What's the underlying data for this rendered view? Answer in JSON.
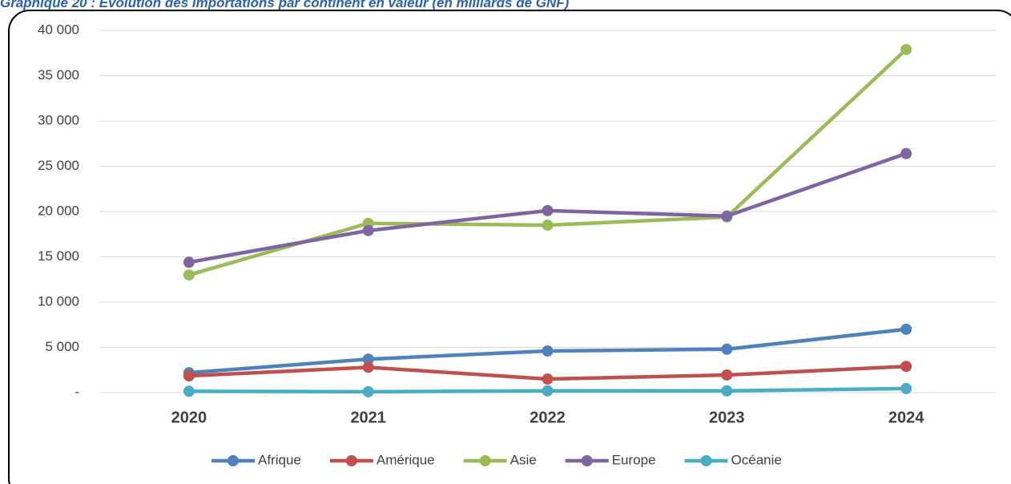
{
  "chart_data": {
    "type": "line",
    "title": "Graphique 20 : Evolution des importations par continent en valeur (en milliards de GNF)",
    "categories": [
      "2020",
      "2021",
      "2022",
      "2023",
      "2024"
    ],
    "series": [
      {
        "name": "Afrique",
        "color": "#4f81bd",
        "values": [
          2200,
          3700,
          4600,
          4800,
          7000
        ]
      },
      {
        "name": "Amérique",
        "color": "#c0504d",
        "values": [
          1850,
          2800,
          1500,
          1950,
          2900
        ]
      },
      {
        "name": "Asie",
        "color": "#9bbb59",
        "values": [
          13000,
          18700,
          18500,
          19400,
          37900
        ]
      },
      {
        "name": "Europe",
        "color": "#8064a2",
        "values": [
          14400,
          17900,
          20100,
          19500,
          26400
        ]
      },
      {
        "name": "Océanie",
        "color": "#4bacc6",
        "values": [
          150,
          100,
          200,
          200,
          450
        ]
      }
    ],
    "ylim": [
      0,
      40000
    ],
    "yticks": [
      {
        "value": 0,
        "label": "-"
      },
      {
        "value": 5000,
        "label": "5 000"
      },
      {
        "value": 10000,
        "label": "10 000"
      },
      {
        "value": 15000,
        "label": "15 000"
      },
      {
        "value": 20000,
        "label": "20 000"
      },
      {
        "value": 25000,
        "label": "25 000"
      },
      {
        "value": 30000,
        "label": "30 000"
      },
      {
        "value": 35000,
        "label": "35 000"
      },
      {
        "value": 40000,
        "label": "40 000"
      }
    ],
    "grid": true,
    "legend": "bottom"
  }
}
